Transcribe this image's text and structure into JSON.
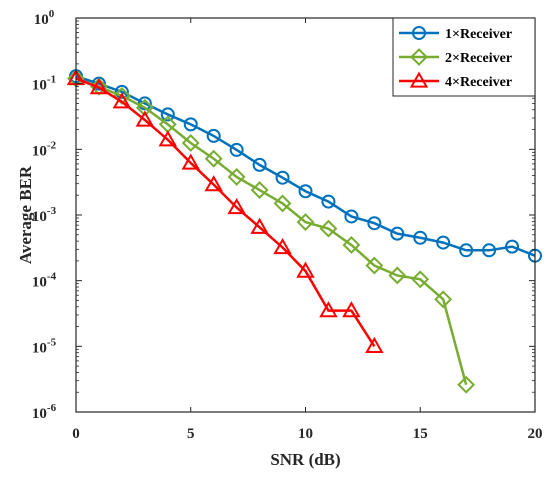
{
  "chart_data": {
    "type": "line",
    "title": "",
    "xlabel": "SNR (dB)",
    "ylabel": "Average BER",
    "xlim": [
      0,
      20
    ],
    "ylim": [
      1e-06,
      1
    ],
    "y_scale": "log",
    "x_ticks": [
      0,
      5,
      10,
      15,
      20
    ],
    "y_ticks": [
      {
        "value": 1,
        "base": "10",
        "exp": "0"
      },
      {
        "value": 0.1,
        "base": "10",
        "exp": "-1"
      },
      {
        "value": 0.01,
        "base": "10",
        "exp": "-2"
      },
      {
        "value": 0.001,
        "base": "10",
        "exp": "-3"
      },
      {
        "value": 0.0001,
        "base": "10",
        "exp": "-4"
      },
      {
        "value": 1e-05,
        "base": "10",
        "exp": "-5"
      },
      {
        "value": 1e-06,
        "base": "10",
        "exp": "-6"
      }
    ],
    "grid": false,
    "legend_position": "top-right",
    "series": [
      {
        "name": "1×Receiver",
        "color": "#0072BD",
        "marker": "circle",
        "x": [
          0,
          1,
          2,
          3,
          4,
          5,
          6,
          7,
          8,
          9,
          10,
          11,
          12,
          13,
          14,
          15,
          16,
          17,
          18,
          19,
          20
        ],
        "y": [
          0.13,
          0.1,
          0.075,
          0.05,
          0.034,
          0.024,
          0.016,
          0.0098,
          0.0058,
          0.0037,
          0.0023,
          0.0016,
          0.00095,
          0.00075,
          0.00052,
          0.00045,
          0.00038,
          0.00029,
          0.00029,
          0.00033,
          0.00024
        ]
      },
      {
        "name": "2×Receiver",
        "color": "#77AC30",
        "marker": "diamond",
        "x": [
          0,
          1,
          2,
          3,
          4,
          5,
          6,
          7,
          8,
          9,
          10,
          11,
          12,
          13,
          14,
          15,
          16,
          17
        ],
        "y": [
          0.12,
          0.09,
          0.065,
          0.043,
          0.024,
          0.0125,
          0.0072,
          0.0038,
          0.0024,
          0.0015,
          0.00078,
          0.00062,
          0.00035,
          0.00017,
          0.00012,
          0.000105,
          5.2e-05,
          2.6e-06
        ]
      },
      {
        "name": "4×Receiver",
        "color": "#FF0000",
        "marker": "triangle",
        "x": [
          0,
          1,
          2,
          3,
          4,
          5,
          6,
          7,
          8,
          9,
          10,
          11,
          12,
          13
        ],
        "y": [
          0.12,
          0.087,
          0.053,
          0.028,
          0.014,
          0.0062,
          0.0029,
          0.0013,
          0.00065,
          0.00032,
          0.00014,
          3.5e-05,
          3.5e-05,
          1e-05
        ]
      }
    ]
  }
}
